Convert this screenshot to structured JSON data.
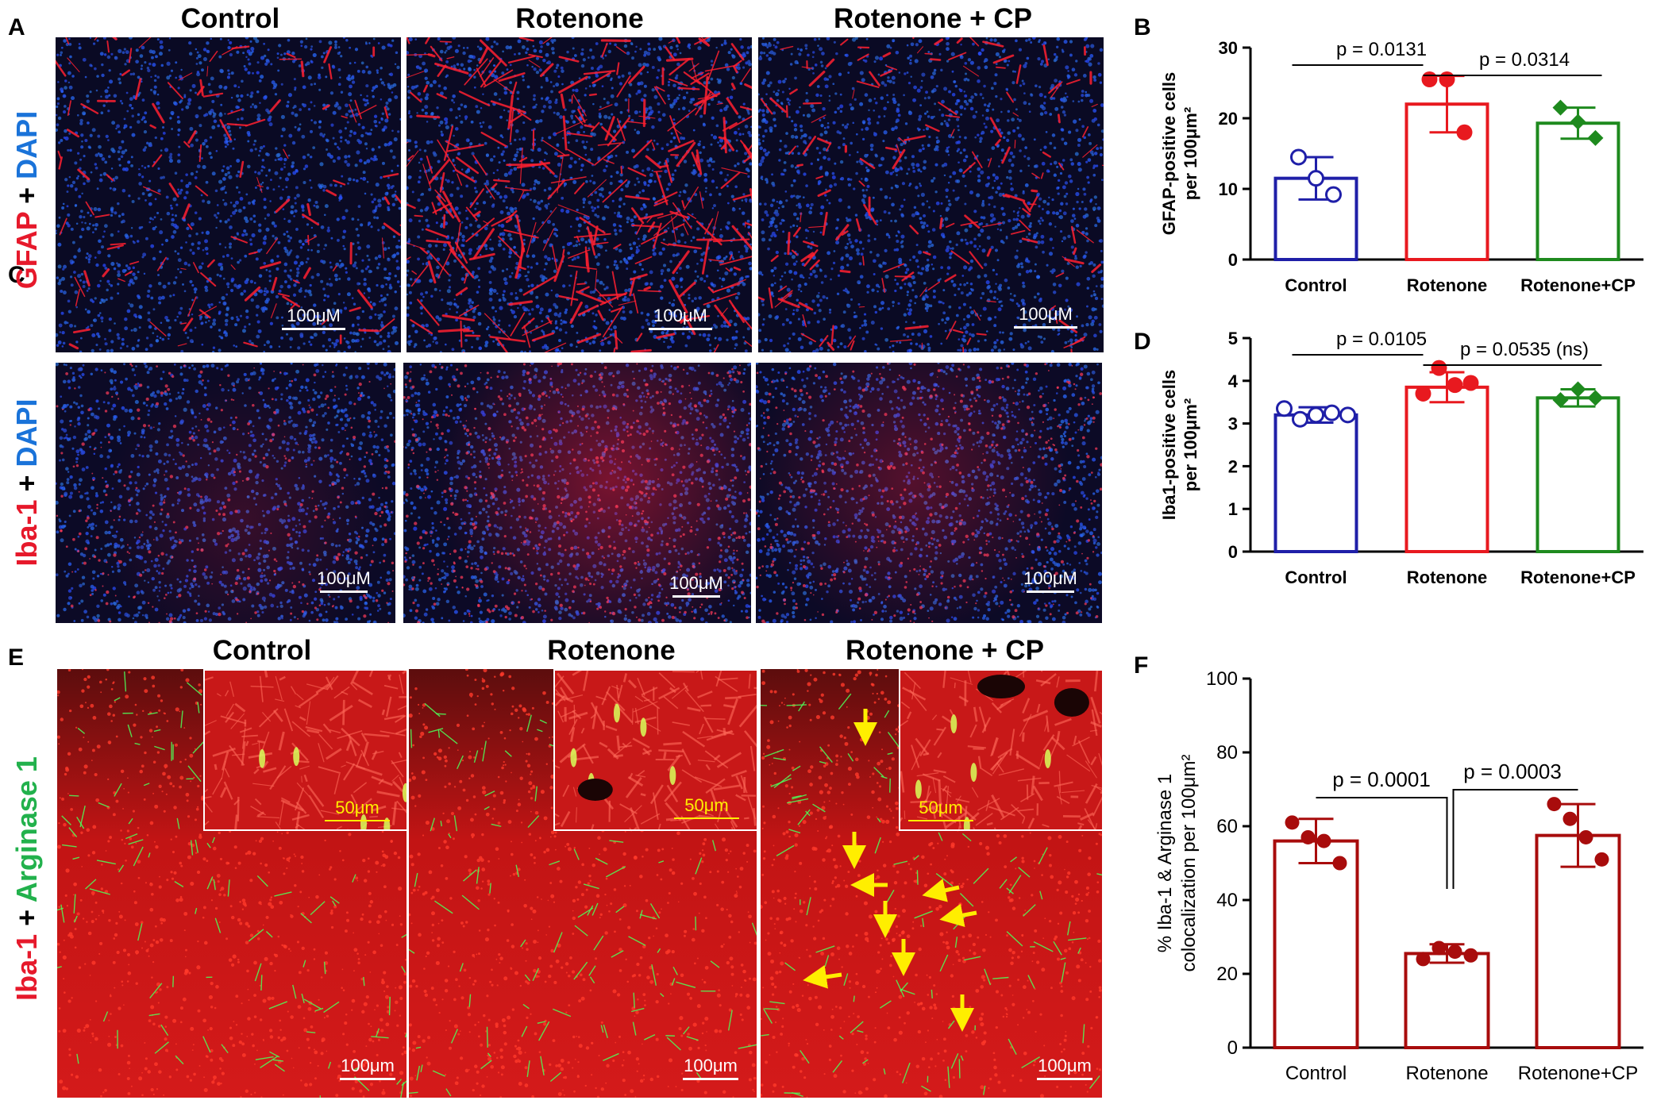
{
  "panels": {
    "A": {
      "letter": "A",
      "row_label_parts": [
        {
          "text": "GFAP",
          "color": "#e6192b"
        },
        {
          "text": " + ",
          "color": "#000000"
        },
        {
          "text": "DAPI",
          "color": "#1a73d9"
        }
      ]
    },
    "C": {
      "letter": "C",
      "row_label_parts": [
        {
          "text": "Iba-1",
          "color": "#e6192b"
        },
        {
          "text": " + ",
          "color": "#000000"
        },
        {
          "text": "DAPI",
          "color": "#1a73d9"
        }
      ]
    },
    "E": {
      "letter": "E",
      "row_label_parts": [
        {
          "text": "Iba-1",
          "color": "#e6192b"
        },
        {
          "text": " + ",
          "color": "#000000"
        },
        {
          "text": "Arginase 1",
          "color": "#22b14c"
        }
      ]
    },
    "B": {
      "letter": "B"
    },
    "D": {
      "letter": "D"
    },
    "F": {
      "letter": "F"
    }
  },
  "column_titles_top": [
    "Control",
    "Rotenone",
    "Rotenone + CP"
  ],
  "column_titles_E": [
    "Control",
    "Rotenone",
    "Rotenone + CP"
  ],
  "scale_labels": {
    "A": [
      "100μM",
      "100μM",
      "100μM"
    ],
    "C": [
      "100μM",
      "100μM",
      "100μM"
    ],
    "E": [
      "100μm",
      "100μm",
      "100μm"
    ],
    "E_inset": [
      "50μm",
      "50μm",
      "50μm"
    ]
  },
  "colors": {
    "control": "#1f1fa8",
    "rotenone": "#e8191f",
    "cp": "#1e8a1e",
    "f_bar": "#a80c0c",
    "dapi_blue": "#1a4fd9",
    "stain_red": "#ff1f2e",
    "arginase_green": "#3cf04a",
    "arrow_yellow": "#ffee00"
  },
  "chart_data": [
    {
      "panel": "B",
      "type": "bar",
      "categories": [
        "Control",
        "Rotenone",
        "Rotenone+CP"
      ],
      "values": [
        11.5,
        22,
        19.3
      ],
      "error": [
        3,
        4,
        2.2
      ],
      "points": [
        [
          14.5,
          11.5,
          9.2
        ],
        [
          25.5,
          25.5,
          18
        ],
        [
          21.5,
          19.5,
          17.2
        ]
      ],
      "ylabel": "GFAP-positive cells per 100μm²",
      "ylim": [
        0,
        30
      ],
      "yticks": [
        0,
        10,
        20,
        30
      ],
      "comparisons": [
        {
          "label": "p = 0.0131",
          "from": 0,
          "to": 1
        },
        {
          "label": "p = 0.0314",
          "from": 1,
          "to": 2
        }
      ]
    },
    {
      "panel": "D",
      "type": "bar",
      "categories": [
        "Control",
        "Rotenone",
        "Rotenone+CP"
      ],
      "values": [
        3.2,
        3.85,
        3.6
      ],
      "error": [
        0.18,
        0.35,
        0.2
      ],
      "points": [
        [
          3.35,
          3.1,
          3.2,
          3.25,
          3.2
        ],
        [
          3.7,
          4.3,
          3.9,
          3.95
        ],
        [
          3.55,
          3.8,
          3.6
        ]
      ],
      "ylabel": "Iba1-positive cells per 100μm²",
      "ylim": [
        0,
        5
      ],
      "yticks": [
        0,
        1,
        2,
        3,
        4,
        5
      ],
      "comparisons": [
        {
          "label": "p = 0.0105",
          "from": 0,
          "to": 1
        },
        {
          "label": "p = 0.0535 (ns)",
          "from": 1,
          "to": 2
        }
      ]
    },
    {
      "panel": "F",
      "type": "bar",
      "categories": [
        "Control",
        "Rotenone",
        "Rotenone+CP"
      ],
      "values": [
        56,
        25.5,
        57.5
      ],
      "error": [
        6,
        2.5,
        8.5
      ],
      "points": [
        [
          61,
          57,
          56,
          50
        ],
        [
          24,
          27,
          26,
          25
        ],
        [
          66,
          62,
          57,
          51
        ]
      ],
      "ylabel": "% Iba-1 & Arginase 1 colocalization per 100μm²",
      "ylim": [
        0,
        100
      ],
      "yticks": [
        0,
        20,
        40,
        60,
        80,
        100
      ],
      "comparisons": [
        {
          "label": "p = 0.0001",
          "from": 0,
          "to": 1
        },
        {
          "label": "p = 0.0003",
          "from": 1,
          "to": 2
        }
      ]
    }
  ]
}
